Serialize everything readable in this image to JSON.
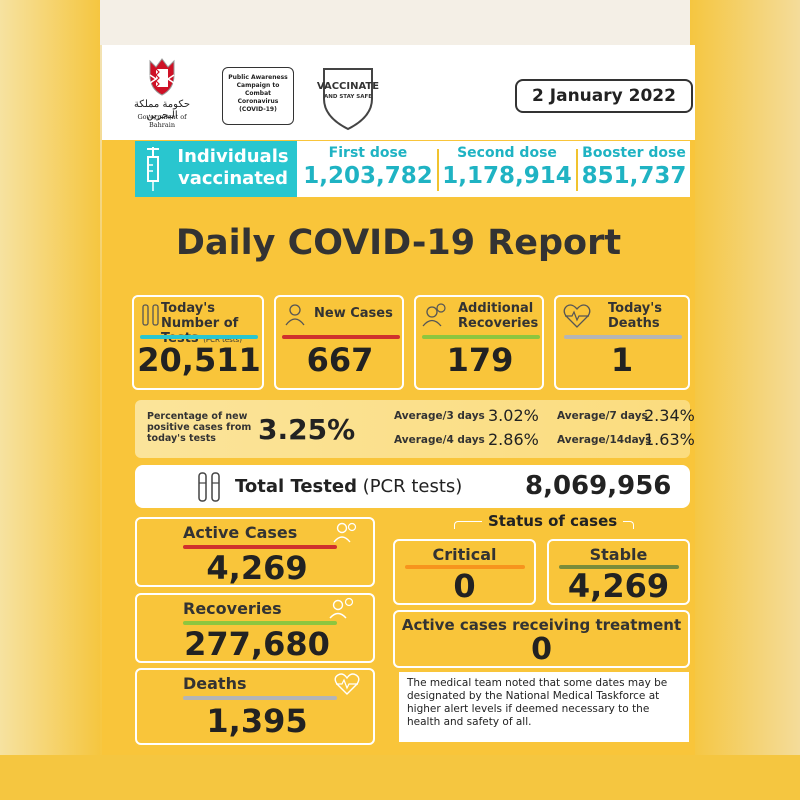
{
  "header": {
    "arabic_name": "حكومة مملكة البحرين",
    "government": "Government of Bahrain",
    "campaign": "Public Awareness Campaign to Combat Coronavirus (COVID-19)",
    "vaccinate": "VACCINATE",
    "stay_safe": "AND STAY SAFE",
    "date": "2 January 2022"
  },
  "vaccination": {
    "label_line1": "Individuals",
    "label_line2": "vaccinated",
    "doses": [
      {
        "label": "First dose",
        "value": "1,203,782"
      },
      {
        "label": "Second dose",
        "value": "1,178,914"
      },
      {
        "label": "Booster dose",
        "value": "851,737"
      }
    ]
  },
  "title": "Daily COVID-19 Report",
  "daily": {
    "tests": {
      "label": "Today's Number of Tests",
      "sub": "(PCR tests)",
      "value": "20,511"
    },
    "new_cases": {
      "label": "New Cases",
      "value": "667"
    },
    "recoveries": {
      "label": "Additional Recoveries",
      "value": "179"
    },
    "deaths": {
      "label": "Today's Deaths",
      "value": "1"
    }
  },
  "positivity": {
    "desc": "Percentage of new positive cases from today's tests",
    "value": "3.25%",
    "averages": [
      {
        "label": "Average/3 days",
        "value": "3.02%"
      },
      {
        "label": "Average/7 days",
        "value": "2.34%"
      },
      {
        "label": "Average/4 days",
        "value": "2.86%"
      },
      {
        "label": "Average/14days",
        "value": "1.63%"
      }
    ]
  },
  "total_tested": {
    "label_bold": "Total Tested",
    "label_rest": " (PCR tests)",
    "value": "8,069,956"
  },
  "totals": {
    "active": {
      "label": "Active Cases",
      "value": "4,269"
    },
    "recoveries": {
      "label": "Recoveries",
      "value": "277,680"
    },
    "deaths": {
      "label": "Deaths",
      "value": "1,395"
    }
  },
  "status": {
    "title": "Status of cases",
    "critical": {
      "label": "Critical",
      "value": "0"
    },
    "stable": {
      "label": "Stable",
      "value": "4,269"
    },
    "treatment": {
      "label": "Active cases receiving treatment",
      "value": "0"
    }
  },
  "note": "The medical team noted that some dates may be designated by the National Medical Taskforce at higher alert levels if deemed necessary to the health and safety of all.",
  "colors": {
    "yellow": "#f9c53a",
    "teal": "#29c6cf",
    "red": "#d0312d",
    "green": "#8dc63f",
    "grey": "#b5b5b5",
    "orange": "#f7941d",
    "olive": "#7a8c3a"
  }
}
